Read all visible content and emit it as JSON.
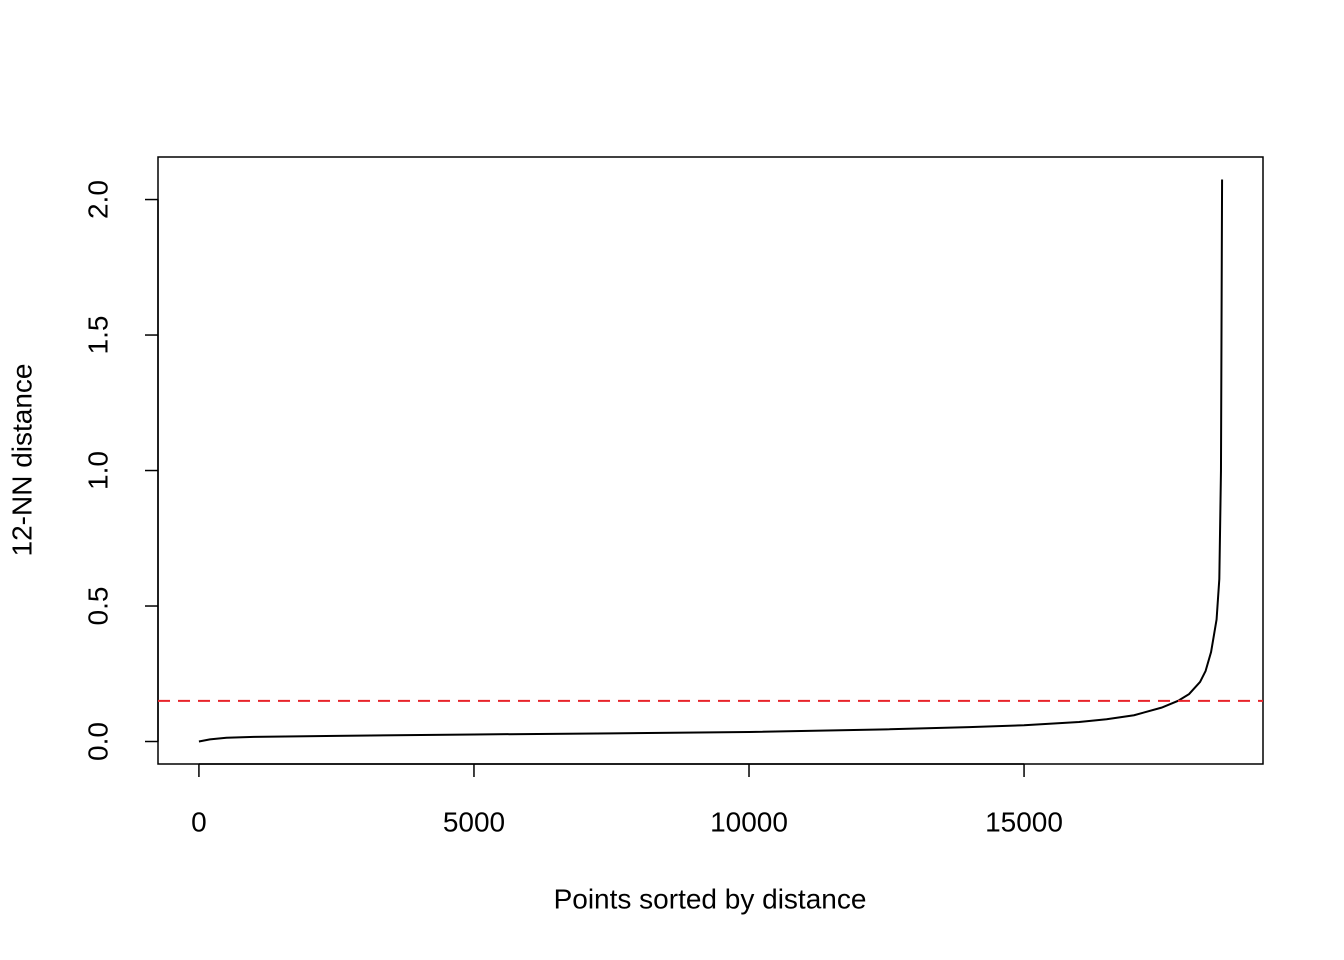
{
  "chart_data": {
    "type": "line",
    "xlabel": "Points sorted by distance",
    "ylabel": "12-NN distance",
    "x": [
      0,
      200,
      500,
      1000,
      2500,
      5000,
      7500,
      10000,
      12500,
      14000,
      15000,
      16000,
      16500,
      17000,
      17500,
      17800,
      18000,
      18200,
      18300,
      18400,
      18500,
      18550,
      18580,
      18600
    ],
    "values": [
      0,
      0.008,
      0.014,
      0.017,
      0.021,
      0.026,
      0.03,
      0.035,
      0.045,
      0.053,
      0.06,
      0.072,
      0.082,
      0.097,
      0.125,
      0.15,
      0.175,
      0.22,
      0.26,
      0.33,
      0.45,
      0.6,
      1.0,
      2.074
    ],
    "color": "#000000",
    "xlim": [
      -744,
      19344
    ],
    "ylim": [
      -0.083,
      2.157
    ],
    "xticks": [
      0,
      5000,
      10000,
      15000
    ],
    "yticks": [
      {
        "value": 0,
        "label": "0.0"
      },
      0.5,
      {
        "value": 1,
        "label": "1.0"
      },
      1.5,
      {
        "value": 2,
        "label": "2.0"
      }
    ],
    "hline": {
      "value": 0.15,
      "color": "#e8242b",
      "style": "dashed"
    },
    "grid": false
  }
}
